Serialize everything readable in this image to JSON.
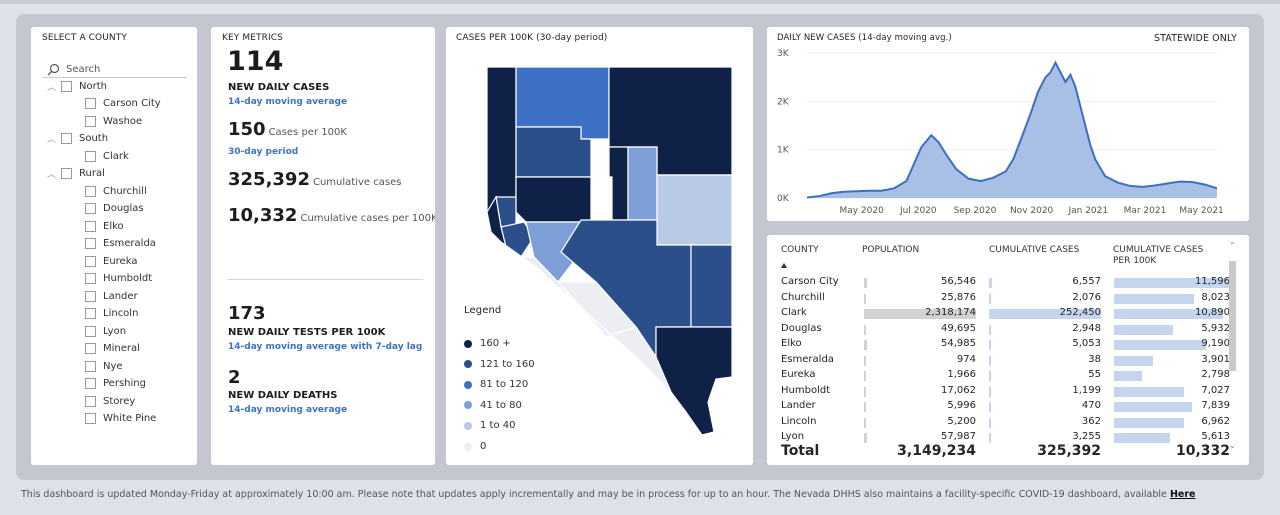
{
  "slicer": {
    "title": "SELECT A COUNTY",
    "search_placeholder": "Search",
    "groups": [
      {
        "label": "North",
        "items": [
          "Carson City",
          "Washoe"
        ]
      },
      {
        "label": "South",
        "items": [
          "Clark"
        ]
      },
      {
        "label": "Rural",
        "items": [
          "Churchill",
          "Douglas",
          "Elko",
          "Esmeralda",
          "Eureka",
          "Humboldt",
          "Lander",
          "Lincoln",
          "Lyon",
          "Mineral",
          "Nye",
          "Pershing",
          "Storey",
          "White Pine"
        ]
      }
    ]
  },
  "metrics": {
    "title": "KEY METRICS",
    "daily_cases": "114",
    "daily_cases_label": "NEW DAILY CASES",
    "daily_cases_sub": "14-day moving average",
    "cases_per_100k": "150",
    "cases_per_100k_label": "Cases per 100K",
    "cases_per_100k_sub": "30-day period",
    "cumulative": "325,392",
    "cumulative_label": "Cumulative cases",
    "cumulative_per_100k": "10,332",
    "cumulative_per_100k_label": "Cumulative cases per 100K",
    "tests": "173",
    "tests_label": "NEW DAILY TESTS PER 100K",
    "tests_sub": "14-day moving average with 7-day lag",
    "deaths": "2",
    "deaths_label": "NEW DAILY DEATHS",
    "deaths_sub": "14-day moving average"
  },
  "map": {
    "title": "CASES PER 100K (30-day period)",
    "legend_title": "Legend",
    "legend": [
      {
        "label": "160 +",
        "color": "#0f2147"
      },
      {
        "label": "121 to 160",
        "color": "#2a4f8a"
      },
      {
        "label": "81 to 120",
        "color": "#3e70c6"
      },
      {
        "label": "41 to 80",
        "color": "#7d9ed6"
      },
      {
        "label": "1 to 40",
        "color": "#b9cae8"
      },
      {
        "label": "0",
        "color": "#eceef3"
      }
    ]
  },
  "chart_data": {
    "type": "area",
    "title": "DAILY NEW CASES (14-day moving avg.)",
    "note": "STATEWIDE ONLY",
    "xlabel": "",
    "ylabel": "",
    "ylim": [
      0,
      3000
    ],
    "yticks": [
      "0K",
      "1K",
      "2K",
      "3K"
    ],
    "xticks": [
      "May 2020",
      "Jul 2020",
      "Sep 2020",
      "Nov 2020",
      "Jan 2021",
      "Mar 2021",
      "May 2021"
    ],
    "x": [
      0,
      0.5,
      1,
      1.5,
      2,
      2.5,
      3,
      3.5,
      4,
      4.3,
      4.6,
      5,
      5.3,
      5.6,
      6,
      6.5,
      7,
      7.5,
      8,
      8.3,
      8.6,
      9,
      9.3,
      9.6,
      9.8,
      10,
      10.2,
      10.4,
      10.6,
      10.8,
      11,
      11.2,
      11.4,
      11.6,
      12,
      12.5,
      13,
      13.5,
      14,
      14.5,
      15,
      15.5,
      16,
      16.5
    ],
    "values": [
      10,
      40,
      100,
      130,
      140,
      150,
      150,
      200,
      350,
      700,
      1050,
      1300,
      1150,
      900,
      600,
      400,
      350,
      420,
      550,
      800,
      1200,
      1750,
      2200,
      2500,
      2600,
      2800,
      2600,
      2400,
      2550,
      2300,
      1900,
      1500,
      1100,
      800,
      450,
      320,
      250,
      230,
      260,
      300,
      340,
      330,
      280,
      200
    ]
  },
  "table": {
    "headers": [
      "COUNTY",
      "POPULATION",
      "CUMULATIVE CASES",
      "CUMULATIVE CASES PER 100K"
    ],
    "rows": [
      [
        "Carson City",
        "56,546",
        "6,557",
        "11,596"
      ],
      [
        "Churchill",
        "25,876",
        "2,076",
        "8,023"
      ],
      [
        "Clark",
        "2,318,174",
        "252,450",
        "10,890"
      ],
      [
        "Douglas",
        "49,695",
        "2,948",
        "5,932"
      ],
      [
        "Elko",
        "54,985",
        "5,053",
        "9,190"
      ],
      [
        "Esmeralda",
        "974",
        "38",
        "3,901"
      ],
      [
        "Eureka",
        "1,966",
        "55",
        "2,798"
      ],
      [
        "Humboldt",
        "17,062",
        "1,199",
        "7,027"
      ],
      [
        "Lander",
        "5,996",
        "470",
        "7,839"
      ],
      [
        "Lincoln",
        "5,200",
        "362",
        "6,962"
      ],
      [
        "Lyon",
        "57,987",
        "3,255",
        "5,613"
      ]
    ],
    "total": [
      "Total",
      "3,149,234",
      "325,392",
      "10,332"
    ]
  },
  "footer": {
    "text": "This dashboard is updated Monday-Friday at approximately 10:00 am. Please note that updates apply incrementally and may be in process for up to an hour.  The Nevada DHHS also maintains a facility-specific COVID-19 dashboard, available",
    "link": "Here"
  }
}
